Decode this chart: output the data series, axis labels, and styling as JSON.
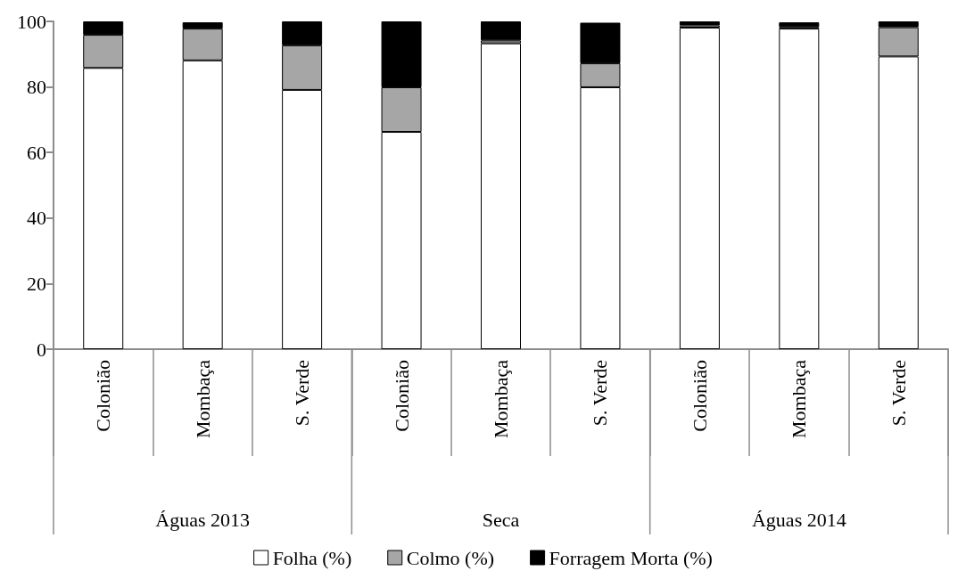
{
  "chart_data": {
    "type": "bar",
    "stacked": true,
    "categories": [
      "Colonião",
      "Mombaça",
      "S. Verde",
      "Colonião",
      "Mombaça",
      "S. Verde",
      "Colonião",
      "Mombaça",
      "S. Verde"
    ],
    "annotations": [
      "Águas 2013",
      "Seca",
      "Águas 2014"
    ],
    "series": [
      {
        "name": "Folha (%)",
        "color": "#ffffff",
        "values": [
          85.8,
          88.1,
          79.1,
          66.3,
          93.3,
          79.9,
          98.1,
          97.8,
          89.3
        ]
      },
      {
        "name": "Colmo (%)",
        "color": "#a6a6a6",
        "values": [
          10.1,
          9.7,
          13.6,
          13.6,
          0.9,
          7.3,
          0.7,
          0.5,
          8.9
        ]
      },
      {
        "name": "Forragem Morta (%)",
        "color": "#000000",
        "values": [
          4.1,
          1.9,
          7.3,
          20.1,
          5.8,
          12.4,
          1.2,
          1.4,
          1.8
        ]
      }
    ],
    "ylim": [
      0,
      100
    ],
    "yticks": [
      0,
      20,
      40,
      60,
      80,
      100
    ],
    "grid": false,
    "legend": "bottom"
  }
}
